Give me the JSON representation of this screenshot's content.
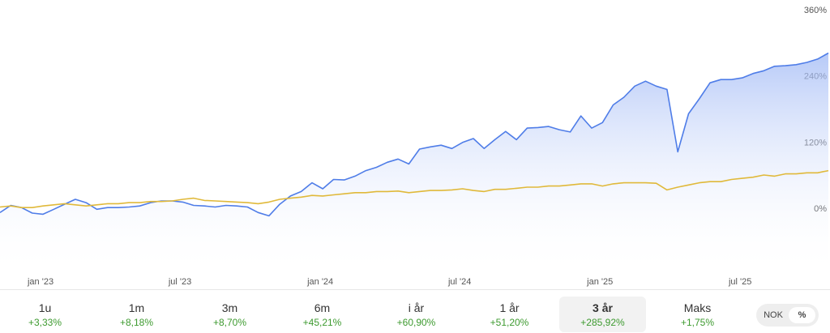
{
  "chart_data": {
    "type": "line",
    "xlim": [
      0,
      77
    ],
    "xticks": [
      {
        "value": 3.77,
        "label": "jan '23"
      },
      {
        "value": 16.73,
        "label": "jul '23"
      },
      {
        "value": 29.77,
        "label": "jan '24"
      },
      {
        "value": 42.73,
        "label": "jul '24"
      },
      {
        "value": 55.77,
        "label": "jan '25"
      },
      {
        "value": 68.8,
        "label": "jul '25"
      }
    ],
    "ylim": [
      -120,
      360
    ],
    "yticks": [
      {
        "value": 360,
        "label": "360%"
      },
      {
        "value": 240,
        "label": "240%"
      },
      {
        "value": 120,
        "label": "120%"
      },
      {
        "value": 0,
        "label": "0%"
      }
    ],
    "series": [
      {
        "color": "#4f7de8",
        "area": true,
        "values": [
          -6,
          7,
          3,
          -7,
          -9,
          0,
          9,
          18,
          12,
          0,
          3,
          3,
          4,
          6,
          12,
          15,
          15,
          13,
          7,
          6,
          4,
          7,
          6,
          4,
          -6,
          -12,
          9,
          24,
          32,
          48,
          37,
          54,
          53,
          60,
          70,
          76,
          85,
          91,
          82,
          109,
          113,
          116,
          110,
          121,
          128,
          110,
          126,
          141,
          126,
          147,
          148,
          150,
          144,
          140,
          169,
          147,
          157,
          189,
          203,
          223,
          232,
          223,
          217,
          104,
          173,
          200,
          229,
          235,
          235,
          238,
          246,
          251,
          259,
          260,
          262,
          266,
          272,
          283
        ]
      },
      {
        "color": "#e0b93a",
        "area": false,
        "values": [
          4,
          6,
          3,
          3,
          6,
          8,
          10,
          8,
          6,
          8,
          10,
          10,
          12,
          12,
          14,
          14,
          15,
          18,
          20,
          16,
          15,
          14,
          13,
          12,
          10,
          13,
          18,
          20,
          22,
          25,
          24,
          26,
          28,
          30,
          30,
          32,
          32,
          33,
          30,
          32,
          34,
          34,
          35,
          37,
          34,
          32,
          36,
          36,
          38,
          40,
          40,
          42,
          42,
          44,
          46,
          46,
          42,
          46,
          48,
          48,
          48,
          47,
          35,
          40,
          44,
          48,
          50,
          50,
          54,
          56,
          58,
          62,
          60,
          64,
          64,
          66,
          66,
          70
        ]
      }
    ]
  },
  "periods": [
    {
      "label": "1u",
      "return": "+3,33%"
    },
    {
      "label": "1m",
      "return": "+8,18%"
    },
    {
      "label": "3m",
      "return": "+8,70%"
    },
    {
      "label": "6m",
      "return": "+45,21%"
    },
    {
      "label": "i år",
      "return": "+60,90%"
    },
    {
      "label": "1 år",
      "return": "+51,20%"
    },
    {
      "label": "3 år",
      "return": "+285,92%"
    },
    {
      "label": "Maks",
      "return": "+1,75%"
    }
  ],
  "selected_period": 6,
  "toggle": [
    "NOK",
    "%"
  ],
  "selected_toggle": 1
}
